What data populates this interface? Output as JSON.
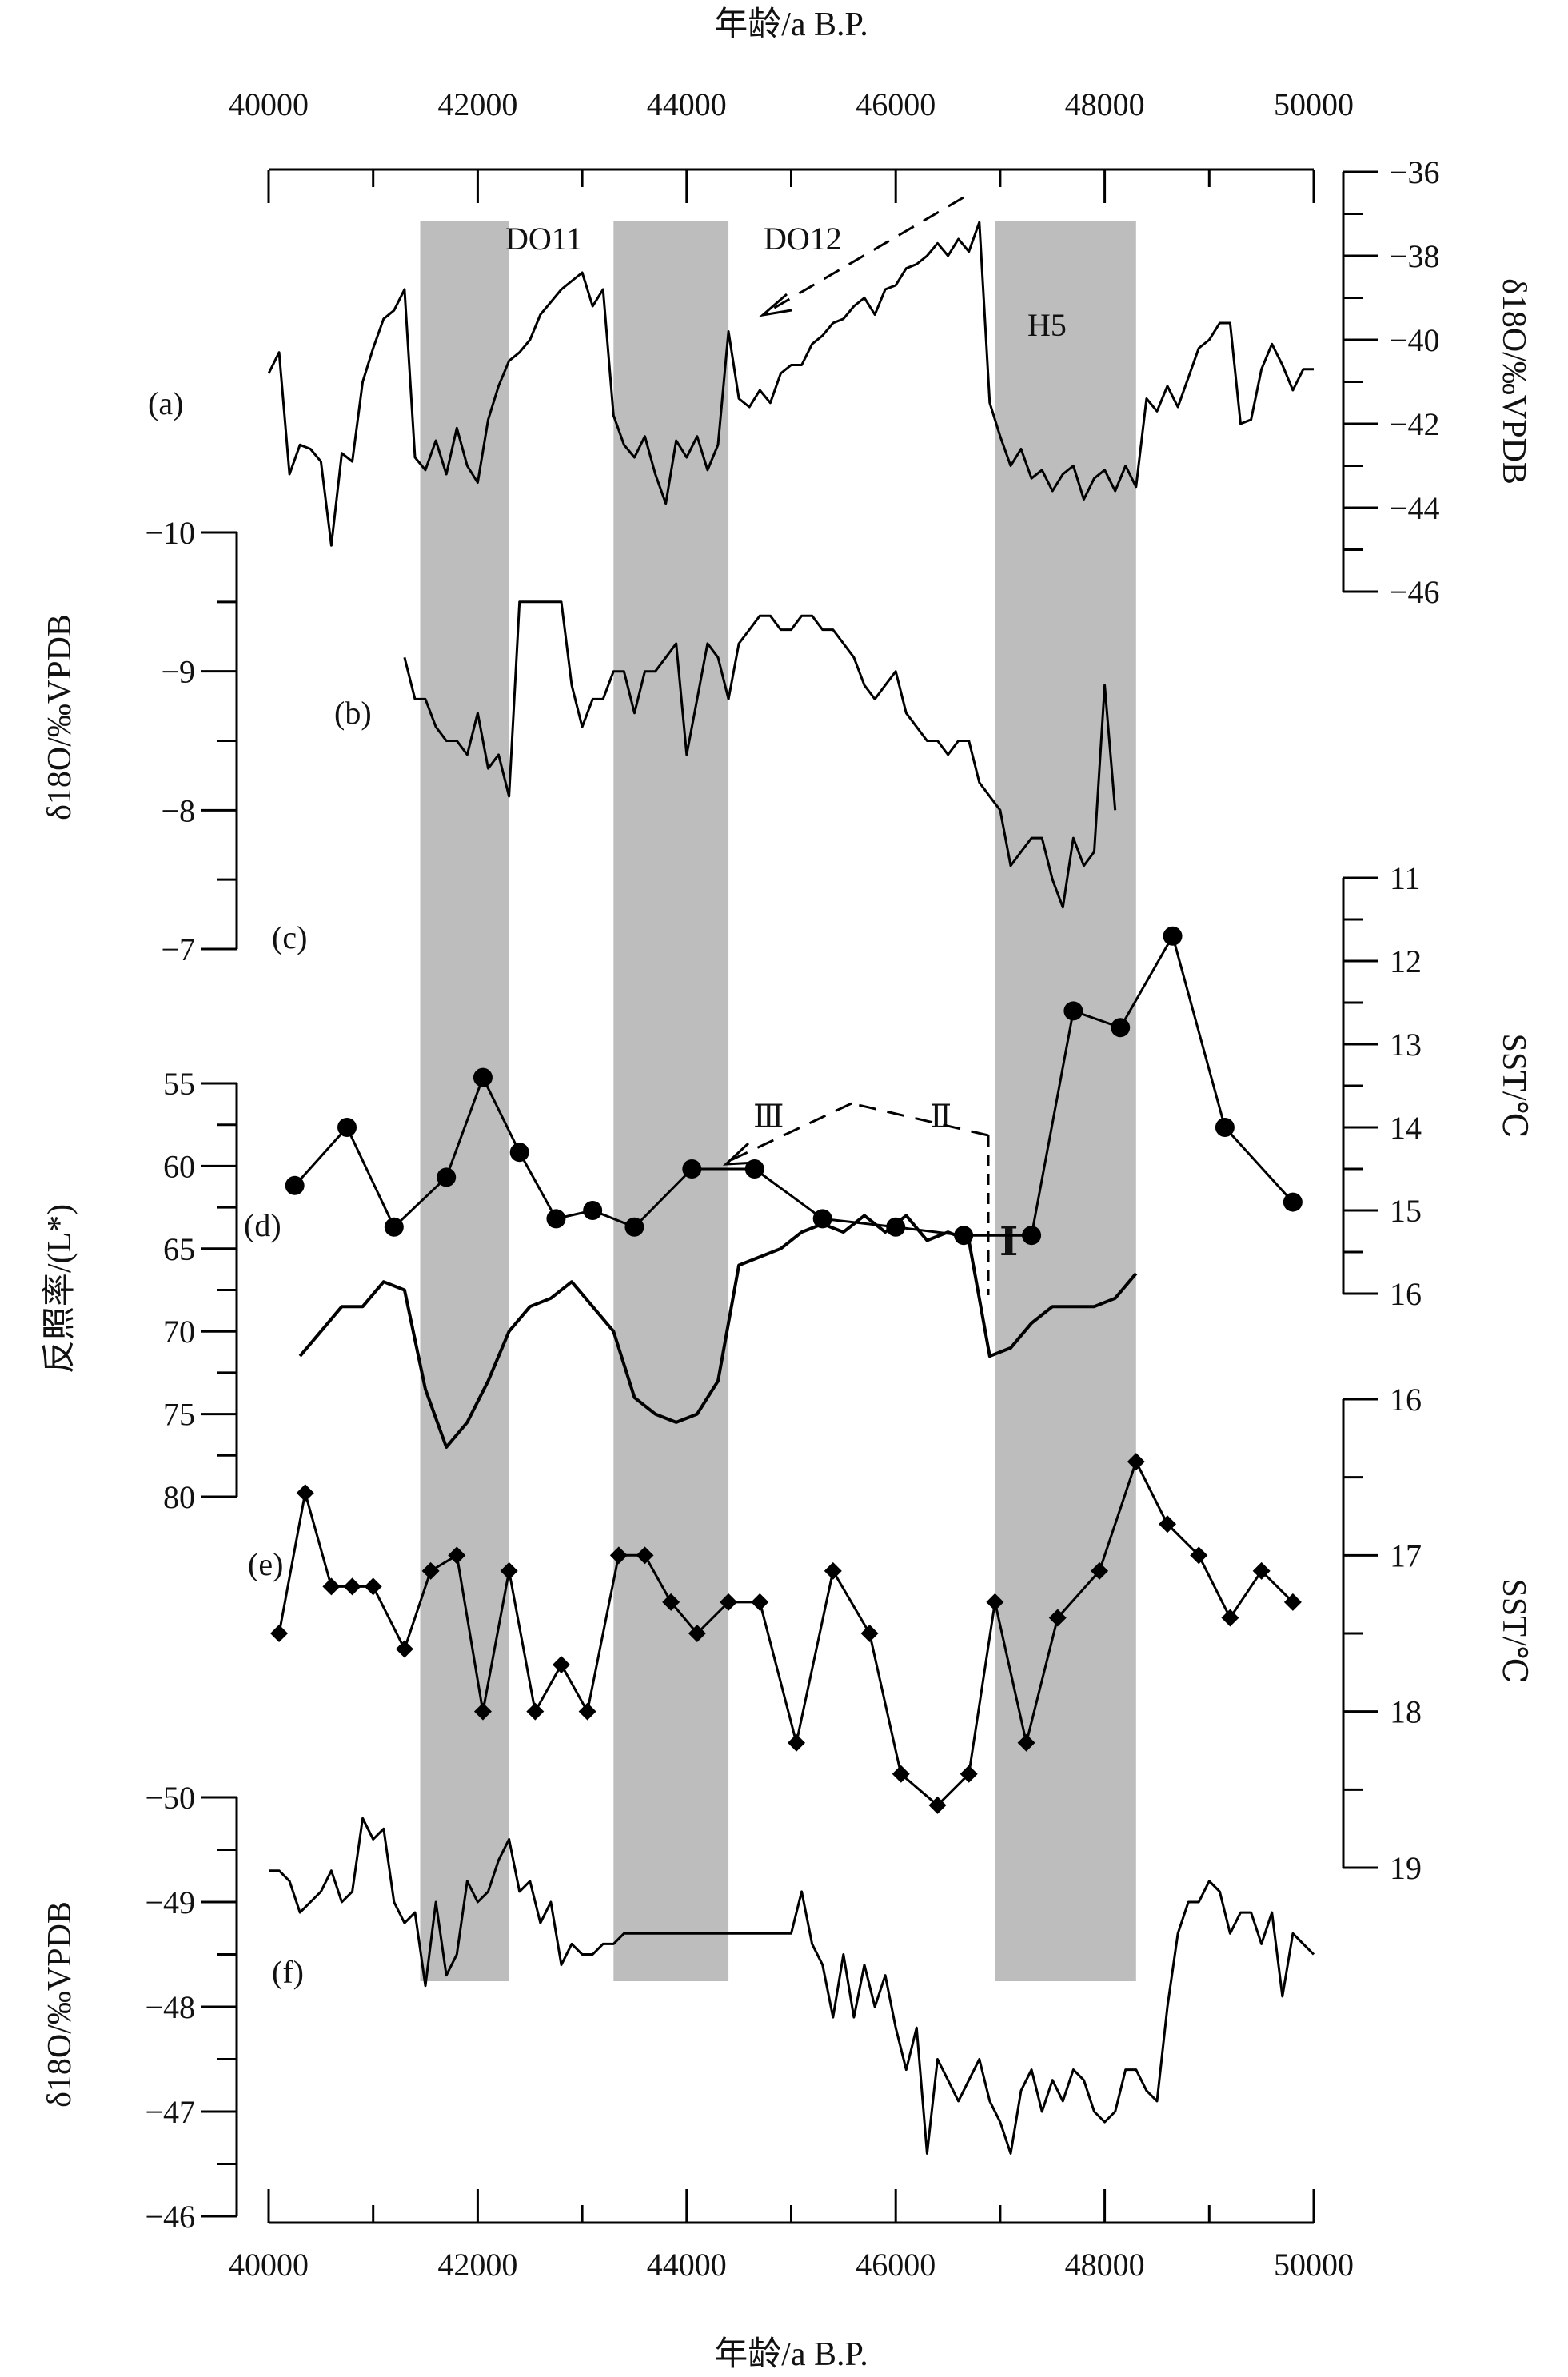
{
  "chart_data": {
    "type": "line",
    "x_axis": {
      "label": "年龄/a B.P.",
      "range": [
        40000,
        50000
      ],
      "ticks": [
        40000,
        42000,
        44000,
        46000,
        48000,
        50000
      ],
      "tick_labels": [
        "40000",
        "42000",
        "44000",
        "46000",
        "48000",
        "50000"
      ],
      "positions": [
        "top",
        "bottom"
      ]
    },
    "shaded_intervals": [
      {
        "from": 41450,
        "to": 42300
      },
      {
        "from": 43300,
        "to": 44400
      },
      {
        "from": 46950,
        "to": 48300
      }
    ],
    "annotations": {
      "do11": "DO11",
      "do12": "DO12",
      "h5": "H5",
      "roman_1": "Ⅰ",
      "roman_2": "Ⅱ",
      "roman_3": "Ⅲ"
    },
    "panels": {
      "a": {
        "label": "(a)",
        "type": "line",
        "axis_side": "right",
        "axis_label": "δ18O/‰VPDB",
        "ylim": [
          -36,
          -46
        ],
        "ticks": [
          -36,
          -38,
          -40,
          -42,
          -44,
          -46
        ],
        "tick_labels": [
          "-36",
          "-38",
          "-40",
          "-42",
          "-44",
          "-46"
        ],
        "x": [
          40000,
          40100,
          40200,
          40300,
          40400,
          40500,
          40600,
          40700,
          40800,
          40900,
          41000,
          41100,
          41200,
          41300,
          41400,
          41500,
          41600,
          41700,
          41800,
          41900,
          42000,
          42100,
          42200,
          42300,
          42400,
          42500,
          42600,
          42700,
          42800,
          42900,
          43000,
          43100,
          43200,
          43300,
          43400,
          43500,
          43600,
          43700,
          43800,
          43900,
          44000,
          44100,
          44200,
          44300,
          44400,
          44500,
          44600,
          44700,
          44800,
          44900,
          45000,
          45100,
          45200,
          45300,
          45400,
          45500,
          45600,
          45700,
          45800,
          45900,
          46000,
          46100,
          46200,
          46300,
          46400,
          46500,
          46600,
          46700,
          46800,
          46900,
          47000,
          47100,
          47200,
          47300,
          47400,
          47500,
          47600,
          47700,
          47800,
          47900,
          48000,
          48100,
          48200,
          48300,
          48400,
          48500,
          48600,
          48700,
          48800,
          48900,
          49000,
          49100,
          49200,
          49300,
          49400,
          49500,
          49600,
          49700,
          49800,
          49900,
          50000
        ],
        "y": [
          -40.8,
          -40.3,
          -43.2,
          -42.5,
          -42.6,
          -42.9,
          -44.9,
          -42.7,
          -42.9,
          -41.0,
          -40.2,
          -39.5,
          -39.3,
          -38.8,
          -42.8,
          -43.1,
          -42.4,
          -43.2,
          -42.1,
          -43.0,
          -43.4,
          -41.9,
          -41.1,
          -40.5,
          -40.3,
          -40.0,
          -39.4,
          -39.1,
          -38.8,
          -38.6,
          -38.4,
          -39.2,
          -38.8,
          -41.8,
          -42.5,
          -42.8,
          -42.3,
          -43.2,
          -43.9,
          -42.4,
          -42.8,
          -42.3,
          -43.1,
          -42.5,
          -39.8,
          -41.4,
          -41.6,
          -41.2,
          -41.5,
          -40.8,
          -40.6,
          -40.6,
          -40.1,
          -39.9,
          -39.6,
          -39.5,
          -39.2,
          -39.0,
          -39.4,
          -38.8,
          -38.7,
          -38.3,
          -38.2,
          -38.0,
          -37.7,
          -38.0,
          -37.6,
          -37.9,
          -37.2,
          -41.5,
          -42.3,
          -43.0,
          -42.6,
          -43.3,
          -43.1,
          -43.6,
          -43.2,
          -43.0,
          -43.8,
          -43.3,
          -43.1,
          -43.6,
          -43.0,
          -43.5,
          -41.4,
          -41.7,
          -41.1,
          -41.6,
          -40.9,
          -40.2,
          -40.0,
          -39.6,
          -39.6,
          -42.0,
          -41.9,
          -40.7,
          -40.1,
          -40.6,
          -41.2,
          -40.7,
          -40.7
        ]
      },
      "b": {
        "label": "(b)",
        "type": "line",
        "axis_side": "left",
        "axis_label": "δ18O/‰VPDB",
        "ylim": [
          -10,
          -7
        ],
        "ticks": [
          -10,
          -9,
          -8,
          -7
        ],
        "tick_labels": [
          "-10",
          "-9",
          "-8",
          "-7"
        ],
        "x": [
          41300,
          41400,
          41500,
          41600,
          41700,
          41800,
          41900,
          42000,
          42100,
          42200,
          42300,
          42400,
          42500,
          42600,
          42700,
          42800,
          42900,
          43000,
          43100,
          43200,
          43300,
          43400,
          43500,
          43600,
          43700,
          43800,
          43900,
          44000,
          44100,
          44200,
          44300,
          44400,
          44500,
          44600,
          44700,
          44800,
          44900,
          45000,
          45100,
          45200,
          45300,
          45400,
          45500,
          45600,
          45700,
          45800,
          45900,
          46000,
          46100,
          46200,
          46300,
          46400,
          46500,
          46600,
          46700,
          46800,
          46900,
          47000,
          47100,
          47200,
          47300,
          47400,
          47500,
          47600,
          47700,
          47800,
          47900,
          48000,
          48100
        ],
        "y": [
          -9.1,
          -8.8,
          -8.8,
          -8.6,
          -8.5,
          -8.5,
          -8.4,
          -8.7,
          -8.3,
          -8.4,
          -8.1,
          -9.5,
          -9.5,
          -9.5,
          -9.5,
          -9.5,
          -8.9,
          -8.6,
          -8.8,
          -8.8,
          -9.0,
          -9.0,
          -8.7,
          -9.0,
          -9.0,
          -9.1,
          -9.2,
          -8.4,
          -8.8,
          -9.2,
          -9.1,
          -8.8,
          -9.2,
          -9.3,
          -9.4,
          -9.4,
          -9.3,
          -9.3,
          -9.4,
          -9.4,
          -9.3,
          -9.3,
          -9.2,
          -9.1,
          -8.9,
          -8.8,
          -8.9,
          -9.0,
          -8.7,
          -8.6,
          -8.5,
          -8.5,
          -8.4,
          -8.5,
          -8.5,
          -8.2,
          -8.1,
          -8.0,
          -7.6,
          -7.7,
          -7.8,
          -7.8,
          -7.5,
          -7.3,
          -7.8,
          -7.6,
          -7.7,
          -8.9,
          -8.0
        ]
      },
      "c": {
        "label": "(c)",
        "type": "line",
        "marker": "circle",
        "axis_side": "right",
        "axis_label": "SST/℃",
        "ylim": [
          11,
          16
        ],
        "ticks": [
          11,
          12,
          13,
          14,
          15,
          16
        ],
        "tick_labels": [
          "11",
          "12",
          "13",
          "14",
          "15",
          "16"
        ],
        "x": [
          40250,
          40750,
          41200,
          41700,
          42050,
          42400,
          42750,
          43100,
          43500,
          44050,
          44650,
          45300,
          46000,
          46650,
          47300,
          47700,
          48150,
          48650,
          49150,
          49800
        ],
        "y": [
          14.7,
          14.0,
          15.2,
          14.6,
          13.4,
          14.3,
          15.1,
          15.0,
          15.2,
          14.5,
          14.5,
          15.1,
          15.2,
          15.3,
          15.3,
          12.6,
          12.8,
          11.7,
          14.0,
          14.9
        ]
      },
      "d": {
        "label": "(d)",
        "type": "line",
        "axis_side": "left",
        "axis_label": "反照率/(L*)",
        "ylim": [
          55,
          80
        ],
        "ticks": [
          55,
          60,
          65,
          70,
          75,
          80
        ],
        "tick_labels": [
          "55",
          "60",
          "65",
          "70",
          "75",
          "80"
        ],
        "x": [
          40300,
          40500,
          40700,
          40900,
          41100,
          41300,
          41500,
          41700,
          41900,
          42100,
          42300,
          42500,
          42700,
          42900,
          43100,
          43300,
          43500,
          43700,
          43900,
          44100,
          44300,
          44500,
          44700,
          44900,
          45100,
          45300,
          45500,
          45700,
          45900,
          46100,
          46300,
          46500,
          46700,
          46900,
          47100,
          47300,
          47500,
          47700,
          47900,
          48100,
          48300
        ],
        "y": [
          71.5,
          70.0,
          68.5,
          68.5,
          67.0,
          67.5,
          73.5,
          77.0,
          75.5,
          73.0,
          70.0,
          68.5,
          68.0,
          67.0,
          68.5,
          70.0,
          74.0,
          75.0,
          75.5,
          75.0,
          73.0,
          66.0,
          65.5,
          65.0,
          64.0,
          63.5,
          64.0,
          63.0,
          64.0,
          63.0,
          64.5,
          64.0,
          64.5,
          71.5,
          71.0,
          69.5,
          68.5,
          68.5,
          68.5,
          68.0,
          66.5
        ]
      },
      "e": {
        "label": "(e)",
        "type": "line",
        "marker": "diamond",
        "axis_side": "right",
        "axis_label": "SST/℃",
        "ylim": [
          16,
          19
        ],
        "ticks": [
          16,
          17,
          18,
          19
        ],
        "tick_labels": [
          "16",
          "17",
          "18",
          "19"
        ],
        "x": [
          40100,
          40350,
          40600,
          40800,
          41000,
          41300,
          41550,
          41800,
          42050,
          42300,
          42550,
          42800,
          43050,
          43350,
          43600,
          43850,
          44100,
          44400,
          44700,
          45050,
          45400,
          45750,
          46050,
          46400,
          46700,
          46950,
          47250,
          47550,
          47950,
          48300,
          48600,
          48900,
          49200,
          49500,
          49800
        ],
        "y": [
          17.5,
          16.6,
          17.2,
          17.2,
          17.2,
          17.6,
          17.1,
          17.0,
          18.0,
          17.1,
          18.0,
          17.7,
          18.0,
          17.0,
          17.0,
          17.3,
          17.5,
          17.3,
          17.3,
          18.2,
          17.1,
          17.5,
          18.4,
          18.6,
          18.4,
          17.3,
          18.2,
          17.4,
          17.1,
          16.4,
          16.8,
          17.0,
          17.4,
          17.1,
          17.3
        ]
      },
      "f": {
        "label": "(f)",
        "type": "line",
        "axis_side": "left",
        "axis_label": "δ18O/‰VPDB",
        "ylim": [
          -50,
          -46
        ],
        "ticks": [
          -50,
          -49,
          -48,
          -47,
          -46
        ],
        "tick_labels": [
          "-50",
          "-49",
          "-48",
          "-47",
          "-46"
        ],
        "x": [
          40000,
          40100,
          40200,
          40300,
          40400,
          40500,
          40600,
          40700,
          40800,
          40900,
          41000,
          41100,
          41200,
          41300,
          41400,
          41500,
          41600,
          41700,
          41800,
          41900,
          42000,
          42100,
          42200,
          42300,
          42400,
          42500,
          42600,
          42700,
          42800,
          42900,
          43000,
          43100,
          43200,
          43300,
          43400,
          44000,
          44500,
          45000,
          45100,
          45200,
          45300,
          45400,
          45500,
          45600,
          45700,
          45800,
          45900,
          46000,
          46100,
          46200,
          46300,
          46400,
          46500,
          46600,
          46700,
          46800,
          46900,
          47000,
          47100,
          47200,
          47300,
          47400,
          47500,
          47600,
          47700,
          47800,
          47900,
          48000,
          48100,
          48200,
          48300,
          48400,
          48500,
          48600,
          48700,
          48800,
          48900,
          49000,
          49100,
          49200,
          49300,
          49400,
          49500,
          49600,
          49700,
          49800,
          49900,
          50000
        ],
        "y": [
          -49.3,
          -49.3,
          -49.2,
          -48.9,
          -49.0,
          -49.1,
          -49.3,
          -49.0,
          -49.1,
          -49.8,
          -49.6,
          -49.7,
          -49.0,
          -48.8,
          -48.9,
          -48.2,
          -49.0,
          -48.3,
          -48.5,
          -49.2,
          -49.0,
          -49.1,
          -49.4,
          -49.6,
          -49.1,
          -49.2,
          -48.8,
          -49.0,
          -48.4,
          -48.6,
          -48.5,
          -48.5,
          -48.6,
          -48.6,
          -48.7,
          -48.7,
          -48.7,
          -48.7,
          -49.1,
          -48.6,
          -48.4,
          -47.9,
          -48.5,
          -47.9,
          -48.4,
          -48.0,
          -48.3,
          -47.8,
          -47.4,
          -47.8,
          -46.6,
          -47.5,
          -47.3,
          -47.1,
          -47.3,
          -47.5,
          -47.1,
          -46.9,
          -46.6,
          -47.2,
          -47.4,
          -47.0,
          -47.3,
          -47.1,
          -47.4,
          -47.3,
          -47.0,
          -46.9,
          -47.0,
          -47.4,
          -47.4,
          -47.2,
          -47.1,
          -48.0,
          -48.7,
          -49.0,
          -49.0,
          -49.2,
          -49.1,
          -48.7,
          -48.9,
          -48.9,
          -48.6,
          -48.9,
          -48.1,
          -48.7,
          -48.6,
          -48.5
        ]
      }
    }
  }
}
